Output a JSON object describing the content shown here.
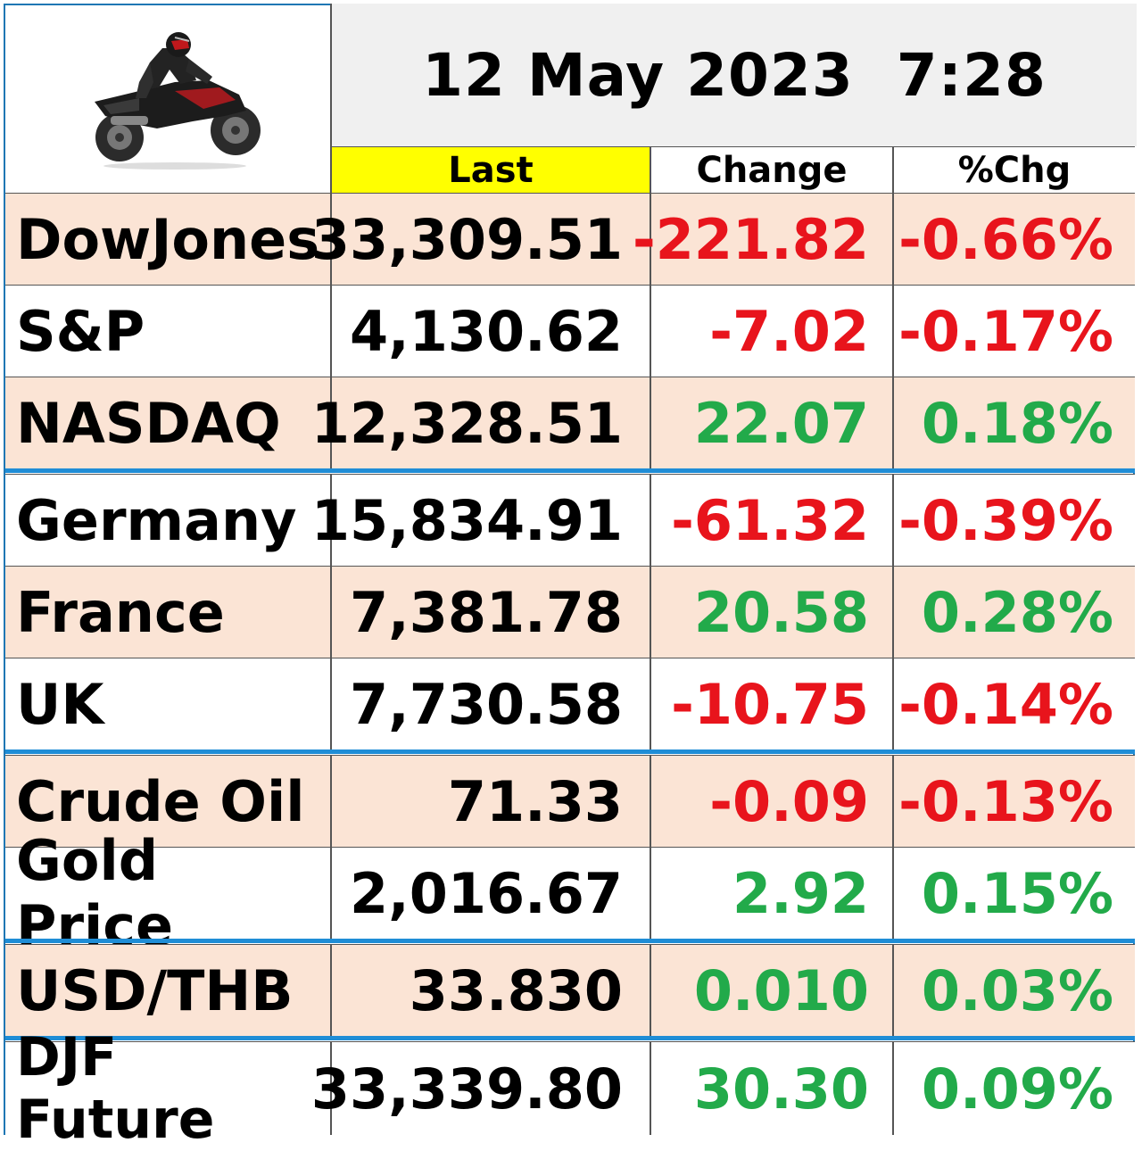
{
  "header": {
    "title": "12 May 2023  7:28",
    "columns": {
      "last": "Last",
      "change": "Change",
      "pct": "%Chg"
    }
  },
  "rows": [
    {
      "name": "DowJones",
      "last": "33,309.51",
      "change": "-221.82",
      "pct": "-0.66%",
      "dir": "neg"
    },
    {
      "name": "S&P",
      "last": "4,130.62",
      "change": "-7.02",
      "pct": "-0.17%",
      "dir": "neg"
    },
    {
      "name": "NASDAQ",
      "last": "12,328.51",
      "change": "22.07",
      "pct": "0.18%",
      "dir": "pos"
    },
    {
      "name": "Germany",
      "last": "15,834.91",
      "change": "-61.32",
      "pct": "-0.39%",
      "dir": "neg"
    },
    {
      "name": "France",
      "last": "7,381.78",
      "change": "20.58",
      "pct": "0.28%",
      "dir": "pos"
    },
    {
      "name": "UK",
      "last": "7,730.58",
      "change": "-10.75",
      "pct": "-0.14%",
      "dir": "neg"
    },
    {
      "name": "Crude Oil",
      "last": "71.33",
      "change": "-0.09",
      "pct": "-0.13%",
      "dir": "neg"
    },
    {
      "name": "Gold Price",
      "last": "2,016.67",
      "change": "2.92",
      "pct": "0.15%",
      "dir": "pos"
    },
    {
      "name": "USD/THB",
      "last": "33.830",
      "change": "0.010",
      "pct": "0.03%",
      "dir": "pos"
    },
    {
      "name": "DJF Future",
      "last": "33,339.80",
      "change": "30.30",
      "pct": "0.09%",
      "dir": "pos"
    }
  ],
  "colors": {
    "negative": "#e8141c",
    "positive": "#22aa4a",
    "shade": "#fbe4d5",
    "highlight": "#ffff00",
    "separator": "#1f8dd6"
  },
  "logo": {
    "icon": "motorcycle-rider-icon"
  }
}
